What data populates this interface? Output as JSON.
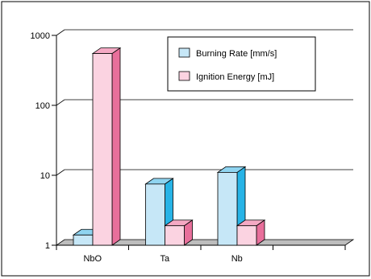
{
  "chart_data": {
    "type": "bar",
    "subtype": "3d-clustered",
    "y_scale": "log",
    "ylim": [
      1,
      1000
    ],
    "y_ticks": [
      "1",
      "10",
      "100",
      "1000"
    ],
    "categories": [
      "NbO",
      "Ta",
      "Nb"
    ],
    "series": [
      {
        "name": "Burning Rate [mm/s]",
        "values": [
          1.4,
          7.5,
          11
        ],
        "color": "#c6e7f7",
        "side_color": "#27b3e6",
        "top_color": "#8fd4f0"
      },
      {
        "name": "Ignition Energy [mJ]",
        "values": [
          550,
          1.9,
          1.9
        ],
        "color": "#fbd3e1",
        "side_color": "#e86f9b",
        "top_color": "#f5a9c4"
      }
    ],
    "grid": true,
    "legend_position": "top-right"
  }
}
